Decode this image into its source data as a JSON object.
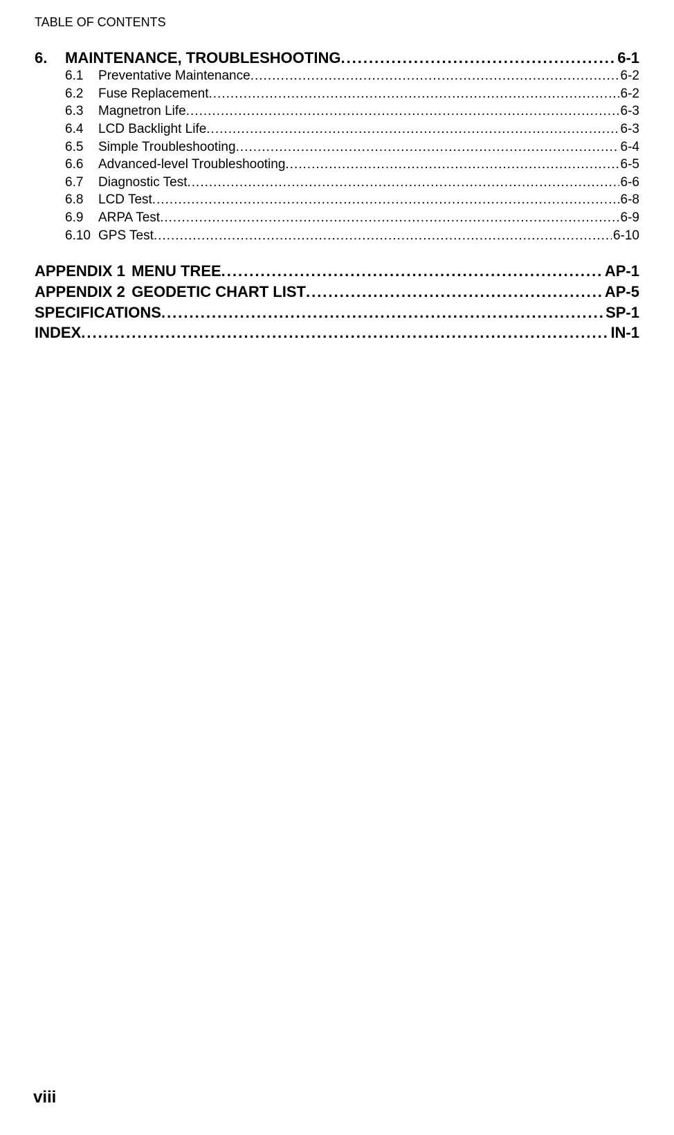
{
  "header": "TABLE OF CONTENTS",
  "page_number": "viii",
  "section": {
    "num": "6.",
    "title": "MAINTENANCE, TROUBLESHOOTING",
    "page": "6-1",
    "entries": [
      {
        "num": "6.1",
        "title": "Preventative Maintenance",
        "page": "6-2"
      },
      {
        "num": "6.2",
        "title": "Fuse Replacement",
        "page": "6-2"
      },
      {
        "num": "6.3",
        "title": "Magnetron Life",
        "page": "6-3"
      },
      {
        "num": "6.4",
        "title": "LCD Backlight Life",
        "page": "6-3"
      },
      {
        "num": "6.5",
        "title": "Simple Troubleshooting",
        "page": "6-4"
      },
      {
        "num": "6.6",
        "title": "Advanced-level Troubleshooting",
        "page": "6-5"
      },
      {
        "num": "6.7",
        "title": "Diagnostic Test",
        "page": "6-6"
      },
      {
        "num": "6.8",
        "title": "LCD Test",
        "page": "6-8"
      },
      {
        "num": "6.9",
        "title": "ARPA Test",
        "page": "6-9"
      },
      {
        "num": "6.10",
        "title": "GPS Test",
        "page": "6-10"
      }
    ]
  },
  "tail": [
    {
      "prefix": "APPENDIX 1",
      "title": "MENU TREE",
      "page": "AP-1"
    },
    {
      "prefix": "APPENDIX 2",
      "title": "GEODETIC CHART LIST",
      "page": "AP-5"
    },
    {
      "prefix": "SPECIFICATIONS",
      "title": "",
      "page": "SP-1"
    },
    {
      "prefix": "INDEX",
      "title": "",
      "page": "IN-1"
    }
  ],
  "style": {
    "text_color": "#000000",
    "background_color": "#ffffff",
    "header_fontsize": 18,
    "section_fontsize": 22,
    "entry_fontsize": 19,
    "tail_fontsize": 22,
    "page_number_fontsize": 24,
    "font_family": "Arial"
  }
}
